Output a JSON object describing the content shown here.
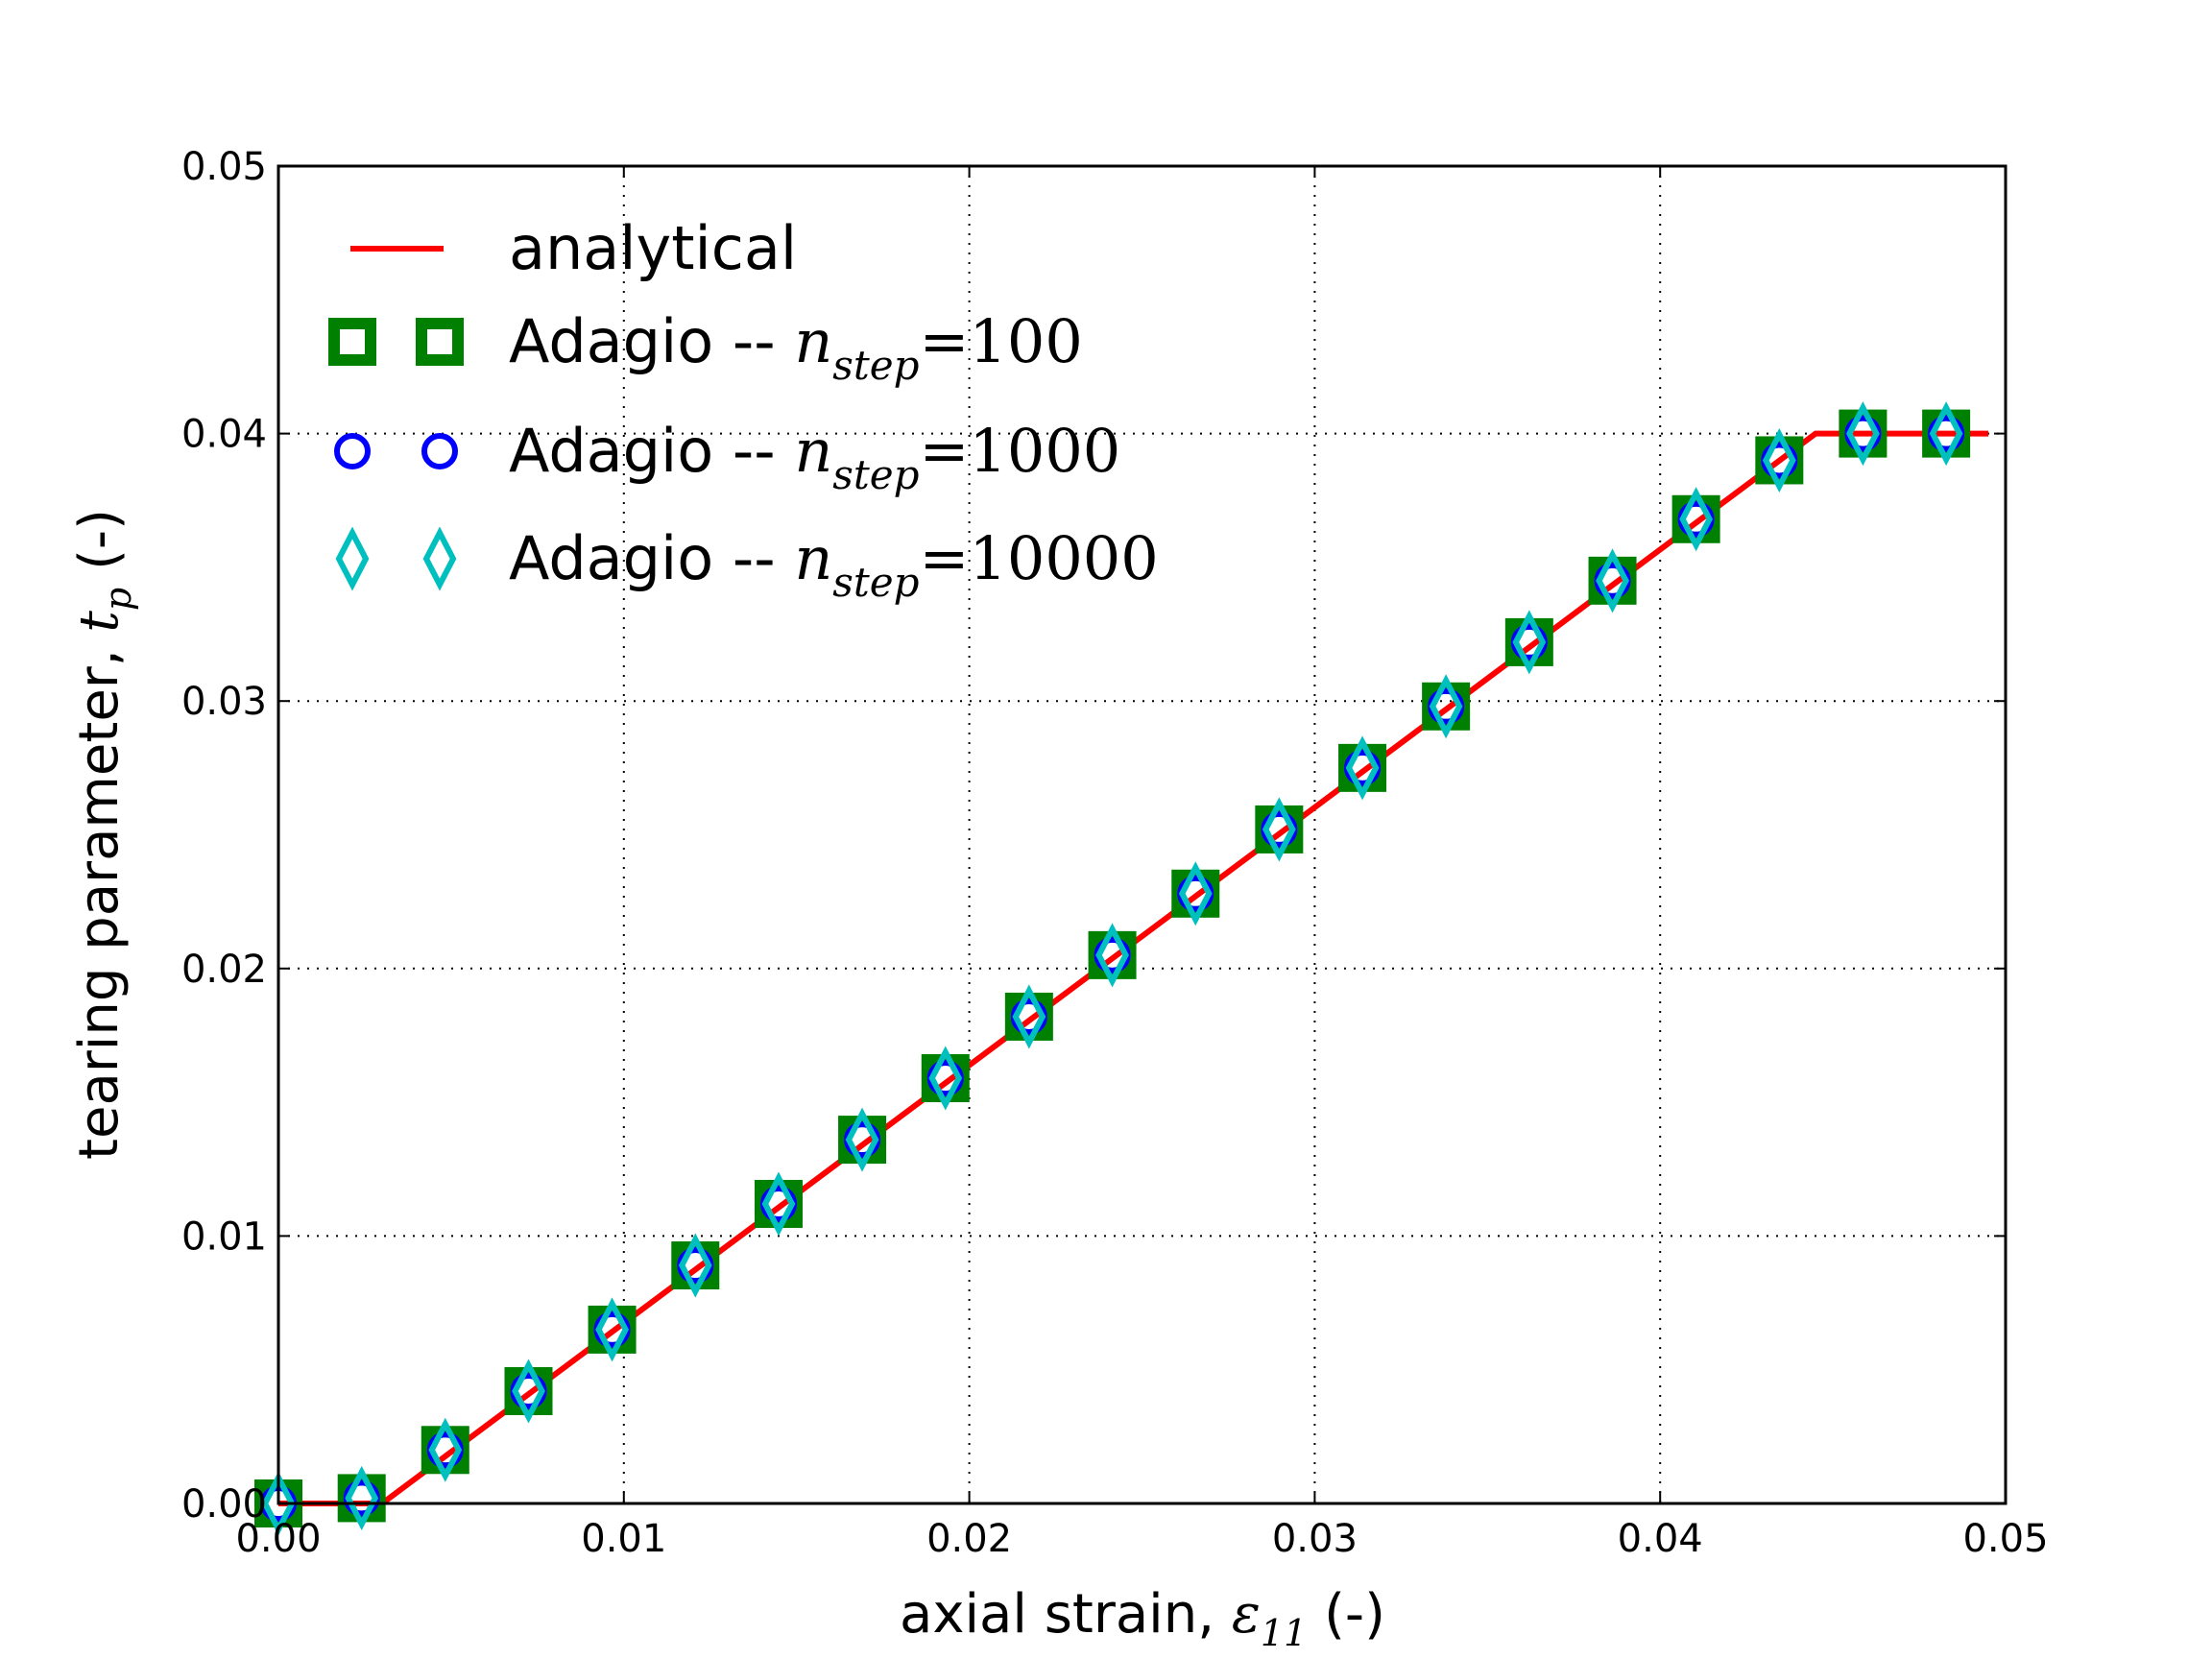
{
  "chart_data": {
    "type": "line",
    "xlabel": "axial strain, ",
    "xlabel_symbol": "ε",
    "xlabel_sub": "11",
    "xlabel_unit": " (-)",
    "ylabel": "tearing parameter, ",
    "ylabel_symbol": "t",
    "ylabel_sub": "p",
    "ylabel_unit": "  (-)",
    "xlim": [
      0,
      0.05
    ],
    "ylim": [
      0,
      0.05
    ],
    "xticks": [
      "0.00",
      "0.01",
      "0.02",
      "0.03",
      "0.04",
      "0.05"
    ],
    "yticks": [
      "0.00",
      "0.01",
      "0.02",
      "0.03",
      "0.04",
      "0.05"
    ],
    "grid": true,
    "legend_position": "top-left",
    "series": [
      {
        "name": "analytical",
        "style": "line",
        "color": "#ff0000",
        "x": [
          0,
          0.003,
          0.0445,
          0.0495
        ],
        "y": [
          0,
          0,
          0.04,
          0.04
        ]
      },
      {
        "name": "Adagio -- ",
        "name_math": "n",
        "name_sub": "step",
        "name_value": "=100",
        "style": "square",
        "color": "#008000",
        "x": [
          0,
          0.00241,
          0.00483,
          0.00724,
          0.00966,
          0.01207,
          0.01448,
          0.0169,
          0.01931,
          0.02173,
          0.02414,
          0.02655,
          0.02897,
          0.03138,
          0.0338,
          0.03621,
          0.03862,
          0.04104,
          0.04345,
          0.04587,
          0.04828
        ],
        "y": [
          0,
          0.0002,
          0.002,
          0.0042,
          0.0065,
          0.0089,
          0.0112,
          0.0136,
          0.0159,
          0.0182,
          0.0205,
          0.0228,
          0.0252,
          0.0275,
          0.0298,
          0.0322,
          0.0345,
          0.0368,
          0.039,
          0.04,
          0.04
        ]
      },
      {
        "name": "Adagio -- ",
        "name_math": "n",
        "name_sub": "step",
        "name_value": "=1000",
        "style": "circle",
        "color": "#0000ff",
        "x": [
          0,
          0.00241,
          0.00483,
          0.00724,
          0.00966,
          0.01207,
          0.01448,
          0.0169,
          0.01931,
          0.02173,
          0.02414,
          0.02655,
          0.02897,
          0.03138,
          0.0338,
          0.03621,
          0.03862,
          0.04104,
          0.04345,
          0.04587,
          0.04828
        ],
        "y": [
          0,
          0.0002,
          0.002,
          0.0042,
          0.0065,
          0.0089,
          0.0112,
          0.0136,
          0.0159,
          0.0182,
          0.0205,
          0.0228,
          0.0252,
          0.0275,
          0.0298,
          0.0322,
          0.0345,
          0.0368,
          0.039,
          0.04,
          0.04
        ]
      },
      {
        "name": "Adagio -- ",
        "name_math": "n",
        "name_sub": "step",
        "name_value": "=10000",
        "style": "diamond",
        "color": "#00bfbf",
        "x": [
          0,
          0.00241,
          0.00483,
          0.00724,
          0.00966,
          0.01207,
          0.01448,
          0.0169,
          0.01931,
          0.02173,
          0.02414,
          0.02655,
          0.02897,
          0.03138,
          0.0338,
          0.03621,
          0.03862,
          0.04104,
          0.04345,
          0.04587,
          0.04828
        ],
        "y": [
          0,
          0.0002,
          0.002,
          0.0042,
          0.0065,
          0.0089,
          0.0112,
          0.0136,
          0.0159,
          0.0182,
          0.0205,
          0.0228,
          0.0252,
          0.0275,
          0.0298,
          0.0322,
          0.0345,
          0.0368,
          0.039,
          0.04,
          0.04
        ]
      }
    ]
  }
}
